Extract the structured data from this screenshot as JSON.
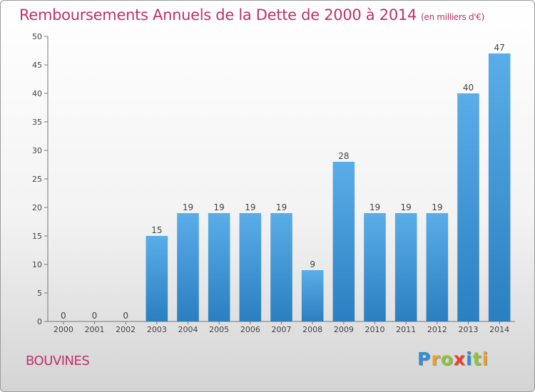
{
  "header": {
    "title": "Remboursements Annuels de la Dette de 2000 à 2014",
    "unit": "(en milliers d'€)"
  },
  "footer": {
    "commune": "BOUVINES",
    "logo_letters": [
      {
        "char": "P",
        "color": "#2e8fd6"
      },
      {
        "char": "r",
        "color": "#f0a21a"
      },
      {
        "char": "o",
        "color": "#8cc63f"
      },
      {
        "char": "x",
        "color": "#e8432c"
      },
      {
        "char": "i",
        "color": "#2e8fd6"
      },
      {
        "char": "t",
        "color": "#8cc63f"
      },
      {
        "char": "i",
        "color": "#f0a21a"
      }
    ]
  },
  "chart_data": {
    "type": "bar",
    "title": "Remboursements Annuels de la Dette de 2000 à 2014",
    "xlabel": "",
    "ylabel": "",
    "categories": [
      "2000",
      "2001",
      "2002",
      "2003",
      "2004",
      "2005",
      "2006",
      "2007",
      "2008",
      "2009",
      "2010",
      "2011",
      "2012",
      "2013",
      "2014"
    ],
    "values": [
      0,
      0,
      0,
      15,
      19,
      19,
      19,
      19,
      9,
      28,
      19,
      19,
      19,
      40,
      47
    ],
    "ylim": [
      0,
      50
    ],
    "yticks": [
      0,
      5,
      10,
      15,
      20,
      25,
      30,
      35,
      40,
      45,
      50
    ],
    "grid": false,
    "legend": "none",
    "colors": {
      "bar_top": "#5aade8",
      "bar_bottom": "#2a7fc0",
      "text": "#444444"
    }
  }
}
